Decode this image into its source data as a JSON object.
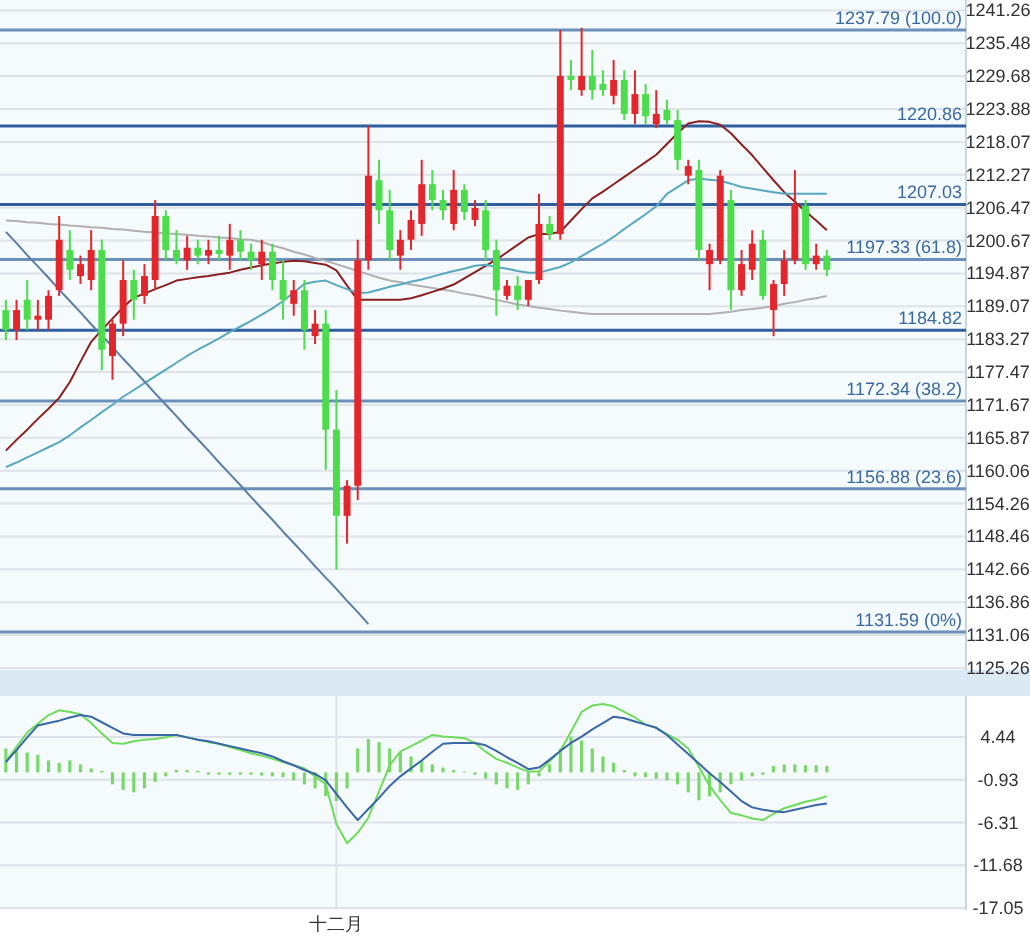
{
  "chart_data": [
    {
      "type": "candlestick",
      "ylim": [
        1124.9,
        1243.1
      ],
      "grid": "y",
      "tick_labels": "y",
      "yticks": [
        1125.26,
        1131.06,
        1136.86,
        1142.66,
        1148.46,
        1154.26,
        1160.06,
        1165.87,
        1171.67,
        1177.47,
        1183.27,
        1189.07,
        1194.87,
        1200.67,
        1206.47,
        1212.27,
        1218.07,
        1223.88,
        1229.68,
        1235.48,
        1241.26
      ],
      "categories": [
        null,
        null,
        null,
        null,
        null,
        null,
        null,
        null,
        null,
        null,
        null,
        null,
        null,
        null,
        null,
        null,
        null,
        null,
        null,
        null,
        null,
        null,
        null,
        null,
        null,
        null,
        null,
        null,
        null,
        null,
        null,
        null,
        null,
        null,
        null,
        null,
        null,
        null,
        null,
        null,
        null,
        null,
        null,
        null,
        null,
        null,
        null,
        null,
        null,
        null,
        null,
        null,
        null,
        null,
        null,
        null,
        null,
        null,
        null,
        null,
        null,
        null,
        null,
        null,
        null,
        null,
        null,
        null,
        null,
        null,
        null,
        null,
        null,
        null,
        null,
        null,
        null,
        null
      ],
      "ohlc": [
        [
          1188.4,
          1190.2,
          1183.1,
          1184.9
        ],
        [
          1184.9,
          1190.2,
          1183.1,
          1188.4
        ],
        [
          1190.2,
          1193.7,
          1184.9,
          1186.7
        ],
        [
          1186.7,
          1190.2,
          1184.9,
          1187.4
        ],
        [
          1186.7,
          1191.9,
          1184.9,
          1190.9
        ],
        [
          1191.9,
          1205.0,
          1190.9,
          1200.8
        ],
        [
          1199.0,
          1202.5,
          1193.7,
          1195.5
        ],
        [
          1194.4,
          1198.0,
          1193.0,
          1196.5
        ],
        [
          1193.7,
          1202.5,
          1191.9,
          1199.0
        ],
        [
          1199.0,
          1200.8,
          1177.8,
          1181.4
        ],
        [
          1180.3,
          1186.7,
          1176.1,
          1186.0
        ],
        [
          1186.0,
          1197.2,
          1183.8,
          1193.7
        ],
        [
          1193.7,
          1195.5,
          1186.7,
          1190.2
        ],
        [
          1190.9,
          1196.5,
          1189.5,
          1194.4
        ],
        [
          1193.7,
          1207.8,
          1191.9,
          1205.0
        ],
        [
          1205.0,
          1206.0,
          1197.2,
          1199.0
        ],
        [
          1199.0,
          1202.5,
          1196.5,
          1197.2
        ],
        [
          1197.2,
          1201.5,
          1195.5,
          1199.4
        ],
        [
          1199.4,
          1200.8,
          1196.5,
          1198.0
        ],
        [
          1198.0,
          1200.8,
          1196.5,
          1199.0
        ],
        [
          1199.0,
          1201.5,
          1197.2,
          1198.3
        ],
        [
          1198.0,
          1203.6,
          1195.5,
          1200.8
        ],
        [
          1200.8,
          1202.5,
          1197.2,
          1198.7
        ],
        [
          1198.7,
          1200.1,
          1195.5,
          1197.2
        ],
        [
          1196.5,
          1200.8,
          1193.7,
          1198.7
        ],
        [
          1198.7,
          1200.1,
          1191.9,
          1193.7
        ],
        [
          1193.7,
          1197.2,
          1186.7,
          1190.2
        ],
        [
          1189.5,
          1193.7,
          1187.4,
          1191.9
        ],
        [
          1191.9,
          1193.7,
          1181.4,
          1184.9
        ],
        [
          1183.8,
          1188.4,
          1182.4,
          1186.0
        ],
        [
          1186.0,
          1188.4,
          1160.2,
          1167.3
        ],
        [
          1167.3,
          1174.3,
          1142.6,
          1152.1
        ],
        [
          1152.1,
          1158.4,
          1147.2,
          1157.4
        ],
        [
          1157.4,
          1200.8,
          1154.9,
          1197.2
        ],
        [
          1197.2,
          1220.9,
          1195.5,
          1212.1
        ],
        [
          1211.3,
          1214.9,
          1203.6,
          1206.0
        ],
        [
          1206.0,
          1209.6,
          1197.2,
          1199.0
        ],
        [
          1198.0,
          1202.5,
          1195.5,
          1200.8
        ],
        [
          1200.8,
          1206.0,
          1199.0,
          1204.3
        ],
        [
          1203.6,
          1214.9,
          1201.5,
          1210.6
        ],
        [
          1210.6,
          1213.1,
          1206.0,
          1207.8
        ],
        [
          1207.8,
          1209.6,
          1204.3,
          1206.0
        ],
        [
          1203.6,
          1213.1,
          1202.5,
          1209.6
        ],
        [
          1209.6,
          1210.6,
          1204.3,
          1205.7
        ],
        [
          1204.3,
          1207.8,
          1203.2,
          1206.4
        ],
        [
          1206.0,
          1207.8,
          1197.2,
          1199.0
        ],
        [
          1199.0,
          1200.8,
          1187.4,
          1191.9
        ],
        [
          1190.9,
          1193.7,
          1190.2,
          1192.7
        ],
        [
          1192.7,
          1194.4,
          1188.4,
          1190.2
        ],
        [
          1190.2,
          1193.7,
          1189.1,
          1193.7
        ],
        [
          1193.7,
          1208.9,
          1193.0,
          1203.6
        ],
        [
          1203.6,
          1205.0,
          1200.8,
          1201.8
        ],
        [
          1201.8,
          1237.8,
          1200.8,
          1229.7
        ],
        [
          1229.7,
          1232.5,
          1227.2,
          1229.0
        ],
        [
          1227.2,
          1238.2,
          1226.2,
          1229.7
        ],
        [
          1229.7,
          1234.3,
          1225.5,
          1227.2
        ],
        [
          1228.3,
          1230.7,
          1226.2,
          1227.2
        ],
        [
          1226.2,
          1232.5,
          1224.7,
          1229.0
        ],
        [
          1229.0,
          1230.7,
          1221.9,
          1223.0
        ],
        [
          1223.0,
          1230.7,
          1221.2,
          1226.5
        ],
        [
          1226.5,
          1228.3,
          1221.2,
          1222.6
        ],
        [
          1221.2,
          1227.2,
          1220.5,
          1223.0
        ],
        [
          1223.7,
          1225.5,
          1221.2,
          1221.9
        ],
        [
          1221.9,
          1223.7,
          1213.1,
          1214.9
        ],
        [
          1212.1,
          1214.9,
          1210.6,
          1213.8
        ],
        [
          1213.1,
          1214.9,
          1197.2,
          1199.0
        ],
        [
          1196.5,
          1200.1,
          1191.9,
          1199.0
        ],
        [
          1197.2,
          1213.1,
          1196.5,
          1212.1
        ],
        [
          1207.8,
          1209.6,
          1188.4,
          1191.9
        ],
        [
          1191.9,
          1199.0,
          1190.9,
          1196.5
        ],
        [
          1195.5,
          1202.5,
          1193.7,
          1200.1
        ],
        [
          1200.8,
          1202.5,
          1190.2,
          1190.9
        ],
        [
          1188.4,
          1193.7,
          1183.8,
          1193.0
        ],
        [
          1193.0,
          1199.0,
          1190.9,
          1197.2
        ],
        [
          1197.2,
          1213.1,
          1196.5,
          1207.1
        ],
        [
          1206.8,
          1207.8,
          1195.5,
          1196.5
        ],
        [
          1196.5,
          1200.1,
          1195.5,
          1198.0
        ],
        [
          1198.0,
          1199.0,
          1194.4,
          1195.5
        ]
      ],
      "colors": [
        "#4cdc4c",
        "#e3262b",
        "#4cdc4c",
        "#e3262b",
        "#e3262b",
        "#e3262b",
        "#4cdc4c",
        "#e3262b",
        "#e3262b",
        "#4cdc4c",
        "#e3262b",
        "#e3262b",
        "#4cdc4c",
        "#e3262b",
        "#e3262b",
        "#4cdc4c",
        "#4cdc4c",
        "#e3262b",
        "#4cdc4c",
        "#e3262b",
        "#4cdc4c",
        "#e3262b",
        "#4cdc4c",
        "#4cdc4c",
        "#e3262b",
        "#4cdc4c",
        "#4cdc4c",
        "#e3262b",
        "#4cdc4c",
        "#e3262b",
        "#4cdc4c",
        "#4cdc4c",
        "#e3262b",
        "#e3262b",
        "#e3262b",
        "#4cdc4c",
        "#4cdc4c",
        "#e3262b",
        "#e3262b",
        "#e3262b",
        "#4cdc4c",
        "#4cdc4c",
        "#e3262b",
        "#4cdc4c",
        "#e3262b",
        "#4cdc4c",
        "#4cdc4c",
        "#e3262b",
        "#4cdc4c",
        "#e3262b",
        "#e3262b",
        "#4cdc4c",
        "#e3262b",
        "#4cdc4c",
        "#e3262b",
        "#4cdc4c",
        "#4cdc4c",
        "#e3262b",
        "#4cdc4c",
        "#e3262b",
        "#4cdc4c",
        "#e3262b",
        "#4cdc4c",
        "#4cdc4c",
        "#e3262b",
        "#4cdc4c",
        "#e3262b",
        "#e3262b",
        "#4cdc4c",
        "#e3262b",
        "#e3262b",
        "#4cdc4c",
        "#e3262b",
        "#e3262b",
        "#e3262b",
        "#4cdc4c",
        "#e3262b",
        "#4cdc4c"
      ],
      "series": [
        {
          "type": "line",
          "color": "#b0b0b0",
          "values": [
            1204.2,
            1204.1,
            1203.9,
            1203.8,
            1203.6,
            1203.5,
            1203.3,
            1203.2,
            1203.0,
            1202.9,
            1202.7,
            1202.6,
            1202.4,
            1202.2,
            1202.1,
            1201.9,
            1201.8,
            1201.7,
            1201.5,
            1201.4,
            1201.2,
            1201.1,
            1200.9,
            1200.8,
            1200.4,
            1199.8,
            1199.3,
            1198.7,
            1198.2,
            1197.6,
            1197.1,
            1196.5,
            1195.9,
            1195.3,
            1194.7,
            1194.1,
            1193.6,
            1193.3,
            1192.9,
            1192.6,
            1192.3,
            1192.0,
            1191.7,
            1191.3,
            1191.0,
            1190.6,
            1190.2,
            1189.8,
            1189.4,
            1189.1,
            1188.8,
            1188.6,
            1188.3,
            1188.1,
            1187.9,
            1187.7,
            1187.7,
            1187.7,
            1187.7,
            1187.7,
            1187.7,
            1187.7,
            1187.7,
            1187.7,
            1187.7,
            1187.7,
            1187.7,
            1187.9,
            1188.1,
            1188.4,
            1188.6,
            1188.8,
            1189.1,
            1189.5,
            1189.8,
            1190.2,
            1190.5,
            1190.9
          ]
        },
        {
          "type": "line",
          "color": "#8b2020",
          "values": [
            1163.6,
            1165.5,
            1167.3,
            1169.2,
            1171.0,
            1172.9,
            1175.7,
            1179.3,
            1182.8,
            1184.9,
            1186.9,
            1188.9,
            1190.6,
            1191.3,
            1192.1,
            1192.8,
            1193.6,
            1193.9,
            1194.2,
            1194.4,
            1194.7,
            1195.0,
            1195.5,
            1195.9,
            1196.3,
            1196.6,
            1196.9,
            1197.1,
            1197.0,
            1196.7,
            1196.4,
            1195.4,
            1192.7,
            1190.2,
            1190.2,
            1190.2,
            1190.2,
            1190.2,
            1190.5,
            1191.0,
            1191.6,
            1192.2,
            1192.9,
            1194.0,
            1195.1,
            1196.2,
            1197.3,
            1198.6,
            1199.9,
            1201.2,
            1201.8,
            1201.8,
            1202.2,
            1204.2,
            1206.2,
            1208.1,
            1209.3,
            1210.6,
            1211.9,
            1213.2,
            1214.5,
            1215.8,
            1217.7,
            1219.6,
            1221.3,
            1221.7,
            1221.6,
            1221.1,
            1219.6,
            1217.6,
            1215.7,
            1213.5,
            1211.3,
            1209.2,
            1207.5,
            1205.8,
            1204.2,
            1202.5
          ]
        },
        {
          "type": "line",
          "color": "#58a8c0",
          "values": [
            1160.7,
            1161.5,
            1162.4,
            1163.3,
            1164.2,
            1165.1,
            1166.3,
            1167.7,
            1169.0,
            1170.4,
            1171.7,
            1173.1,
            1174.3,
            1175.5,
            1176.7,
            1177.9,
            1179.1,
            1180.3,
            1181.4,
            1182.4,
            1183.4,
            1184.5,
            1185.5,
            1186.5,
            1187.6,
            1188.7,
            1190.0,
            1191.5,
            1193.0,
            1193.4,
            1193.6,
            1192.8,
            1192.1,
            1191.4,
            1191.5,
            1192.0,
            1192.5,
            1192.9,
            1193.4,
            1193.8,
            1194.3,
            1194.8,
            1195.3,
            1195.7,
            1196.2,
            1196.4,
            1196.0,
            1195.7,
            1195.3,
            1195.0,
            1195.0,
            1195.5,
            1196.0,
            1196.8,
            1197.9,
            1199.0,
            1200.1,
            1201.3,
            1202.7,
            1204.0,
            1205.3,
            1206.7,
            1208.9,
            1210.1,
            1211.3,
            1211.6,
            1211.4,
            1211.2,
            1210.7,
            1210.1,
            1209.8,
            1209.5,
            1209.2,
            1208.9,
            1208.9,
            1208.9,
            1208.9,
            1208.9
          ]
        },
        {
          "type": "line",
          "color": "#5b7ea6",
          "values": [
            1202.2,
            1200.2,
            1198.1,
            1196.1,
            1194.1,
            1192.0,
            1190.0,
            1188.0,
            1185.9,
            1183.9,
            1181.9,
            1179.8,
            1177.8,
            1175.8,
            1173.7,
            1171.7,
            1169.7,
            1167.6,
            1165.6,
            1163.6,
            1161.5,
            1159.5,
            1157.5,
            1155.4,
            1153.4,
            1151.4,
            1149.3,
            1147.3,
            1145.3,
            1143.2,
            1141.2,
            1139.2,
            1137.1,
            1135.1,
            1133.0,
            null,
            null,
            null,
            null,
            null,
            null,
            null,
            null,
            null,
            null,
            null,
            null,
            null,
            null,
            null,
            null,
            null,
            null,
            null,
            null,
            null,
            null,
            null,
            null,
            null,
            null,
            null,
            null,
            null,
            null,
            null,
            null,
            null,
            null,
            null,
            null,
            null,
            null,
            null,
            null,
            null,
            null,
            null
          ]
        }
      ],
      "ref_lines": [
        {
          "axis": "y",
          "value": 1237.79,
          "label": "1237.79 (100.0)",
          "color": "#6a8fb8"
        },
        {
          "axis": "y",
          "value": 1220.86,
          "label": "1220.86",
          "color": "#2f5f9e"
        },
        {
          "axis": "y",
          "value": 1207.03,
          "label": "1207.03",
          "color": "#2f5f9e"
        },
        {
          "axis": "y",
          "value": 1197.33,
          "label": "1197.33 (61.8)",
          "color": "#6a8fb8"
        },
        {
          "axis": "y",
          "value": 1184.82,
          "label": "1184.82",
          "color": "#2f5f9e"
        },
        {
          "axis": "y",
          "value": 1172.34,
          "label": "1172.34 (38.2)",
          "color": "#6a8fb8"
        },
        {
          "axis": "y",
          "value": 1156.88,
          "label": "1156.88 (23.6)",
          "color": "#6a8fb8"
        },
        {
          "axis": "y",
          "value": 1131.59,
          "label": "1131.59 (0%)",
          "color": "#6a8fb8"
        }
      ]
    },
    {
      "type": "line",
      "ylim": [
        -17.3,
        9.6
      ],
      "grid": true,
      "categories": [
        null,
        null,
        null,
        null,
        null,
        null,
        null,
        null,
        null,
        null,
        null,
        null,
        null,
        null,
        null,
        null,
        null,
        null,
        null,
        null,
        null,
        null,
        null,
        null,
        null,
        null,
        null,
        null,
        null,
        null,
        null,
        "十二月",
        null,
        null,
        null,
        null,
        null,
        null,
        null,
        null,
        null,
        null,
        null,
        null,
        null,
        null,
        null,
        null,
        null,
        null,
        null,
        null,
        null,
        null,
        null,
        null,
        null,
        null,
        null,
        null,
        null,
        null,
        null,
        null,
        null,
        null,
        null,
        null,
        null,
        null,
        null,
        null,
        null,
        null,
        null,
        null,
        null,
        null
      ],
      "yticks": [
        4.44,
        -0.93,
        -6.31,
        -11.68,
        -17.05
      ],
      "series": [
        {
          "type": "bar",
          "color": "#7ad86a",
          "values": [
            3.0,
            3.0,
            2.5,
            2.2,
            1.5,
            1.2,
            1.5,
            1.0,
            0.5,
            0.2,
            -1.5,
            -2.2,
            -2.5,
            -2.0,
            -1.2,
            -0.5,
            0.3,
            0.3,
            0.2,
            -0.3,
            -0.3,
            -0.3,
            -0.3,
            -0.3,
            -0.4,
            -0.5,
            -0.6,
            -1.0,
            -1.5,
            -2.0,
            -3.0,
            -3.6,
            -2.0,
            3.0,
            4.2,
            3.8,
            3.0,
            2.5,
            2.0,
            1.5,
            1.0,
            0.6,
            0.3,
            0.1,
            -0.3,
            -0.8,
            -1.5,
            -2.0,
            -2.2,
            -1.5,
            -0.5,
            1.0,
            3.0,
            4.5,
            4.0,
            3.0,
            2.0,
            1.2,
            0.3,
            -0.5,
            -0.6,
            -0.8,
            -1.0,
            -1.5,
            -2.5,
            -3.5,
            -3.0,
            -2.5,
            -1.5,
            -1.0,
            -0.5,
            -0.3,
            0.8,
            1.0,
            1.0,
            0.9,
            0.9,
            0.8
          ]
        },
        {
          "type": "line",
          "color": "#6edc5a",
          "values": [
            1.4,
            3.2,
            5.0,
            6.1,
            7.2,
            7.8,
            7.6,
            7.3,
            6.2,
            4.9,
            3.7,
            3.6,
            3.9,
            4.1,
            4.2,
            4.4,
            4.7,
            4.4,
            4.1,
            3.8,
            3.6,
            3.2,
            2.8,
            2.4,
            2.1,
            1.7,
            1.3,
            0.9,
            0.5,
            -0.5,
            -1.5,
            -6.5,
            -8.9,
            -7.6,
            -5.7,
            -2.4,
            0.9,
            2.6,
            3.3,
            4.0,
            4.7,
            4.5,
            4.4,
            4.3,
            3.7,
            2.6,
            1.7,
            1.2,
            0.6,
            0.1,
            0.1,
            1.4,
            2.7,
            5.1,
            7.6,
            8.4,
            8.6,
            8.3,
            7.6,
            6.9,
            6.0,
            5.6,
            4.8,
            4.1,
            3.0,
            0.7,
            -1.7,
            -3.5,
            -5.1,
            -5.4,
            -5.8,
            -6.0,
            -5.2,
            -4.5,
            -4.1,
            -3.7,
            -3.4,
            -3.0
          ]
        },
        {
          "type": "line",
          "color": "#3a66a8",
          "values": [
            1.3,
            2.8,
            4.4,
            5.9,
            6.2,
            6.5,
            6.9,
            7.2,
            7.0,
            6.3,
            5.6,
            4.9,
            4.7,
            4.7,
            4.7,
            4.7,
            4.7,
            4.4,
            4.1,
            3.9,
            3.6,
            3.3,
            3.0,
            2.7,
            2.4,
            2.0,
            1.4,
            0.9,
            0.3,
            -0.2,
            -1.0,
            -2.7,
            -4.4,
            -6.0,
            -4.6,
            -3.2,
            -1.7,
            -0.5,
            0.5,
            1.5,
            2.6,
            3.6,
            3.7,
            3.7,
            3.7,
            3.4,
            2.7,
            1.9,
            1.2,
            0.4,
            0.6,
            1.6,
            2.7,
            3.7,
            4.5,
            5.4,
            6.2,
            7.0,
            6.8,
            6.4,
            6.0,
            5.6,
            4.7,
            3.5,
            2.3,
            1.1,
            -0.1,
            -1.2,
            -2.4,
            -3.6,
            -4.4,
            -4.7,
            -4.9,
            -5.0,
            -4.7,
            -4.4,
            -4.1,
            -3.9
          ]
        }
      ]
    }
  ]
}
